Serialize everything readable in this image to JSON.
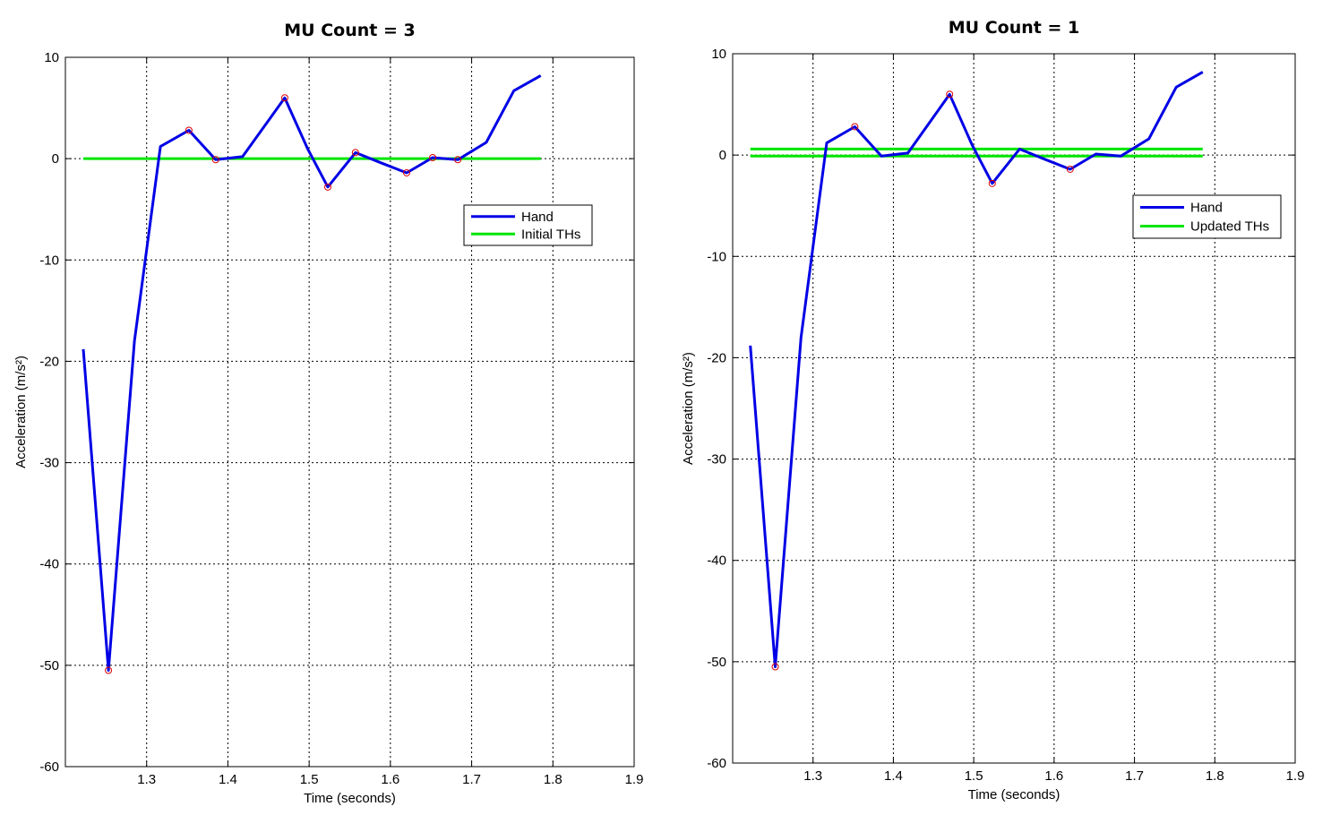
{
  "chart_data": [
    {
      "type": "line",
      "title": "MU Count = 3",
      "xlabel": "Time (seconds)",
      "ylabel": "Acceleration (m/s²)",
      "xlim": [
        1.2,
        1.9
      ],
      "ylim": [
        -60,
        10
      ],
      "xticks": [
        1.3,
        1.4,
        1.5,
        1.6,
        1.7,
        1.8,
        1.9
      ],
      "xtick_labels": [
        "1.3",
        "1.4",
        "1.5",
        "1.6",
        "1.7",
        "1.8",
        "1.9"
      ],
      "yticks": [
        -60,
        -50,
        -40,
        -30,
        -20,
        -10,
        0,
        10
      ],
      "ytick_labels": [
        "-60",
        "-50",
        "-40",
        "-30",
        "-20",
        "-10",
        "0",
        "10"
      ],
      "grid": true,
      "legend_position": "center-right",
      "series": [
        {
          "name": "Hand",
          "color": "#0000e6",
          "x": [
            1.222,
            1.253,
            1.285,
            1.317,
            1.352,
            1.385,
            1.418,
            1.47,
            1.498,
            1.523,
            1.557,
            1.588,
            1.62,
            1.652,
            1.683,
            1.718,
            1.752,
            1.785
          ],
          "y": [
            -18.8,
            -50.5,
            -18.0,
            1.2,
            2.8,
            -0.1,
            0.2,
            6.0,
            1.0,
            -2.8,
            0.6,
            -0.4,
            -1.4,
            0.1,
            -0.1,
            1.6,
            6.7,
            8.2
          ]
        },
        {
          "name": "Initial THs",
          "color": "#00e600",
          "x": [
            1.222,
            1.785
          ],
          "y": [
            0,
            0
          ]
        }
      ],
      "markers": {
        "color": "#dd0000",
        "x": [
          1.253,
          1.352,
          1.385,
          1.47,
          1.523,
          1.557,
          1.62,
          1.652,
          1.683
        ],
        "y": [
          -50.5,
          2.8,
          -0.1,
          6.0,
          -2.8,
          0.6,
          -1.4,
          0.1,
          -0.1
        ]
      }
    },
    {
      "type": "line",
      "title": "MU Count = 1",
      "xlabel": "Time (seconds)",
      "ylabel": "Acceleration (m/s²)",
      "xlim": [
        1.2,
        1.9
      ],
      "ylim": [
        -60,
        10
      ],
      "xticks": [
        1.3,
        1.4,
        1.5,
        1.6,
        1.7,
        1.8,
        1.9
      ],
      "xtick_labels": [
        "1.3",
        "1.4",
        "1.5",
        "1.6",
        "1.7",
        "1.8",
        "1.9"
      ],
      "yticks": [
        -60,
        -50,
        -40,
        -30,
        -20,
        -10,
        0,
        10
      ],
      "ytick_labels": [
        "-60",
        "-50",
        "-40",
        "-30",
        "-20",
        "-10",
        "0",
        "10"
      ],
      "grid": true,
      "legend_position": "center-right",
      "series": [
        {
          "name": "Hand",
          "color": "#0000e6",
          "x": [
            1.222,
            1.253,
            1.285,
            1.317,
            1.352,
            1.385,
            1.418,
            1.47,
            1.498,
            1.523,
            1.557,
            1.588,
            1.62,
            1.652,
            1.683,
            1.718,
            1.752,
            1.785
          ],
          "y": [
            -18.8,
            -50.5,
            -18.0,
            1.2,
            2.8,
            -0.1,
            0.2,
            6.0,
            1.0,
            -2.8,
            0.6,
            -0.4,
            -1.4,
            0.1,
            -0.1,
            1.6,
            6.7,
            8.2
          ]
        },
        {
          "name": "Updated THs",
          "color": "#00e600",
          "x": [
            1.222,
            1.785
          ],
          "y": [
            0.6,
            0.6
          ]
        },
        {
          "name": "",
          "color": "#00e600",
          "x": [
            1.222,
            1.785
          ],
          "y": [
            -0.1,
            -0.1
          ]
        }
      ],
      "markers": {
        "color": "#dd0000",
        "x": [
          1.253,
          1.352,
          1.47,
          1.523,
          1.62
        ],
        "y": [
          -50.5,
          2.8,
          6.0,
          -2.8,
          -1.4
        ]
      }
    }
  ]
}
